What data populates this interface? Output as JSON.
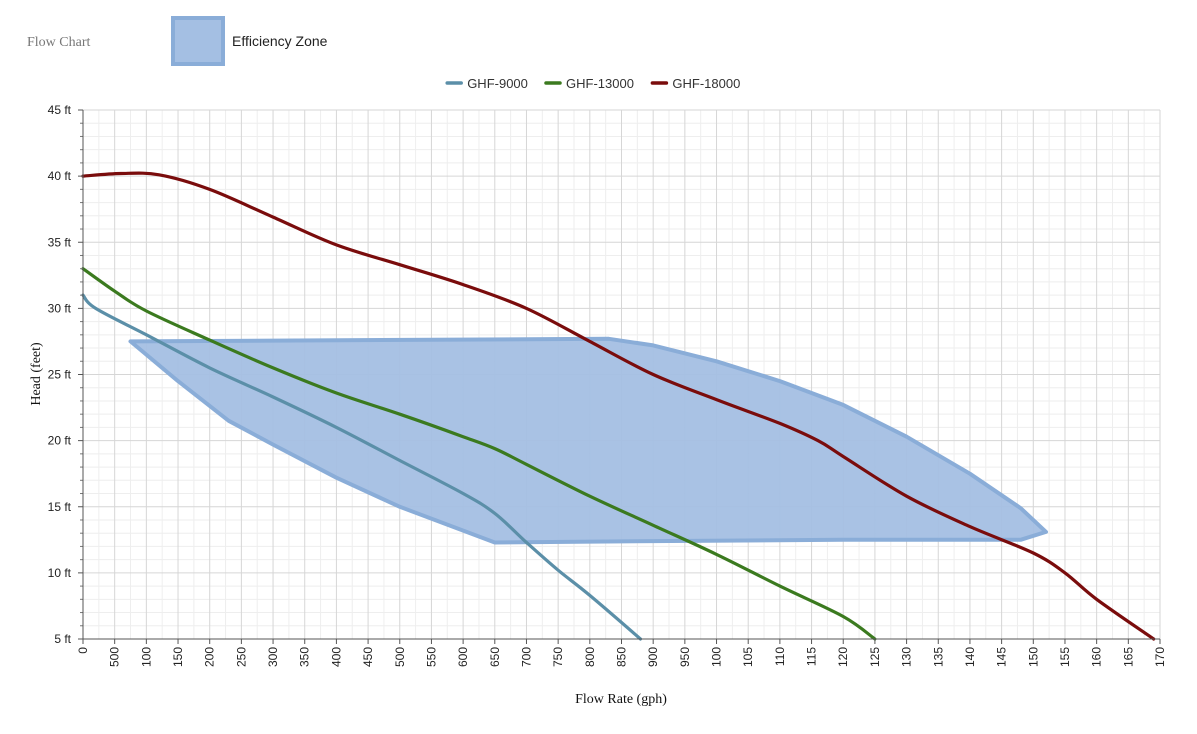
{
  "page": {
    "title": "Flow Chart"
  },
  "chart_data": {
    "type": "line",
    "xlabel": "Flow Rate (gph)",
    "ylabel": "Head (feet)",
    "x_ticks": [
      "0",
      "500",
      "100",
      "150",
      "200",
      "250",
      "300",
      "350",
      "400",
      "450",
      "500",
      "550",
      "600",
      "650",
      "700",
      "750",
      "800",
      "850",
      "900",
      "950",
      "100",
      "105",
      "110",
      "115",
      "120",
      "125",
      "130",
      "135",
      "140",
      "145",
      "150",
      "155",
      "160",
      "165",
      "170"
    ],
    "xlim": [
      0,
      1700
    ],
    "y_ticks": [
      "5 ft",
      "10 ft",
      "15 ft",
      "20 ft",
      "25 ft",
      "30 ft",
      "35 ft",
      "40 ft",
      "45 ft"
    ],
    "ylim": [
      5,
      45
    ],
    "grid": true,
    "series": [
      {
        "name": "GHF-9000",
        "color": "#5b8fa8",
        "points": [
          [
            0,
            31
          ],
          [
            20,
            30
          ],
          [
            100,
            28
          ],
          [
            200,
            25.5
          ],
          [
            300,
            23.3
          ],
          [
            400,
            21
          ],
          [
            500,
            18.5
          ],
          [
            600,
            16
          ],
          [
            650,
            14.5
          ],
          [
            700,
            12.3
          ],
          [
            750,
            10.2
          ],
          [
            800,
            8.3
          ],
          [
            880,
            5
          ]
        ]
      },
      {
        "name": "GHF-13000",
        "color": "#3b7a1f",
        "points": [
          [
            0,
            33
          ],
          [
            50,
            31.3
          ],
          [
            100,
            29.8
          ],
          [
            200,
            27.6
          ],
          [
            300,
            25.5
          ],
          [
            400,
            23.6
          ],
          [
            500,
            22
          ],
          [
            600,
            20.3
          ],
          [
            650,
            19.4
          ],
          [
            700,
            18.2
          ],
          [
            800,
            15.8
          ],
          [
            900,
            13.6
          ],
          [
            1000,
            11.4
          ],
          [
            1100,
            9
          ],
          [
            1200,
            6.7
          ],
          [
            1250,
            5
          ]
        ]
      },
      {
        "name": "GHF-18000",
        "color": "#7a0c0c",
        "points": [
          [
            0,
            40
          ],
          [
            60,
            40.2
          ],
          [
            120,
            40.1
          ],
          [
            200,
            39
          ],
          [
            300,
            36.9
          ],
          [
            400,
            34.8
          ],
          [
            500,
            33.3
          ],
          [
            600,
            31.8
          ],
          [
            700,
            30
          ],
          [
            800,
            27.5
          ],
          [
            900,
            25
          ],
          [
            1000,
            23.1
          ],
          [
            1100,
            21.3
          ],
          [
            1160,
            20
          ],
          [
            1200,
            18.8
          ],
          [
            1300,
            15.8
          ],
          [
            1400,
            13.5
          ],
          [
            1500,
            11.5
          ],
          [
            1550,
            10
          ],
          [
            1600,
            8
          ],
          [
            1690,
            5
          ]
        ]
      }
    ],
    "efficiency_zone": {
      "name": "Efficiency Zone",
      "color": "#a4bfe3",
      "border_color": "#8aadd8",
      "points": [
        [
          75,
          27.5
        ],
        [
          830,
          27.7
        ],
        [
          900,
          27.2
        ],
        [
          1000,
          26
        ],
        [
          1100,
          24.5
        ],
        [
          1200,
          22.7
        ],
        [
          1300,
          20.3
        ],
        [
          1400,
          17.5
        ],
        [
          1480,
          14.9
        ],
        [
          1520,
          13.1
        ],
        [
          1480,
          12.5
        ],
        [
          1200,
          12.5
        ],
        [
          900,
          12.4
        ],
        [
          650,
          12.3
        ],
        [
          500,
          15
        ],
        [
          400,
          17.2
        ],
        [
          300,
          19.7
        ],
        [
          230,
          21.5
        ],
        [
          150,
          24.5
        ],
        [
          75,
          27.5
        ]
      ]
    }
  }
}
